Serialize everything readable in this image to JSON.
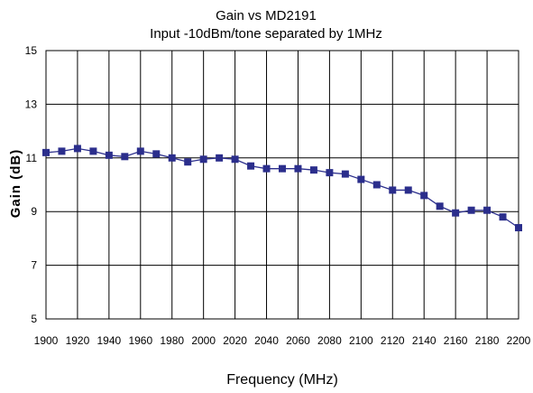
{
  "chart_data": {
    "type": "line",
    "title": "Gain vs MD2191",
    "subtitle": "Input -10dBm/tone separated by 1MHz",
    "xlabel": "Frequency (MHz)",
    "ylabel": "Gain (dB)",
    "xlim": [
      1900,
      2200
    ],
    "ylim": [
      5,
      15
    ],
    "grid": true,
    "x_ticks": [
      "1900",
      "1920",
      "1940",
      "1960",
      "1980",
      "2000",
      "2020",
      "2040",
      "2060",
      "2080",
      "2100",
      "2120",
      "2140",
      "2160",
      "2180",
      "2200"
    ],
    "y_ticks": [
      "5",
      "7",
      "9",
      "11",
      "13",
      "15"
    ],
    "colors": {
      "series": "#2b2e8c",
      "grid": "#000000"
    },
    "series": [
      {
        "x": [
          1900,
          1910,
          1920,
          1930,
          1940,
          1950,
          1960,
          1970,
          1980,
          1990,
          2000,
          2010,
          2020,
          2030,
          2040,
          2050,
          2060,
          2070,
          2080,
          2090,
          2100,
          2110,
          2120,
          2130,
          2140,
          2150,
          2160,
          2170,
          2180,
          2190,
          2200
        ],
        "y": [
          11.2,
          11.25,
          11.35,
          11.25,
          11.1,
          11.05,
          11.25,
          11.15,
          11.0,
          10.85,
          10.95,
          11.0,
          10.95,
          10.7,
          10.6,
          10.6,
          10.6,
          10.55,
          10.45,
          10.4,
          10.2,
          10.0,
          9.8,
          9.8,
          9.6,
          9.2,
          8.95,
          9.05,
          9.05,
          8.8,
          8.4
        ]
      }
    ]
  }
}
